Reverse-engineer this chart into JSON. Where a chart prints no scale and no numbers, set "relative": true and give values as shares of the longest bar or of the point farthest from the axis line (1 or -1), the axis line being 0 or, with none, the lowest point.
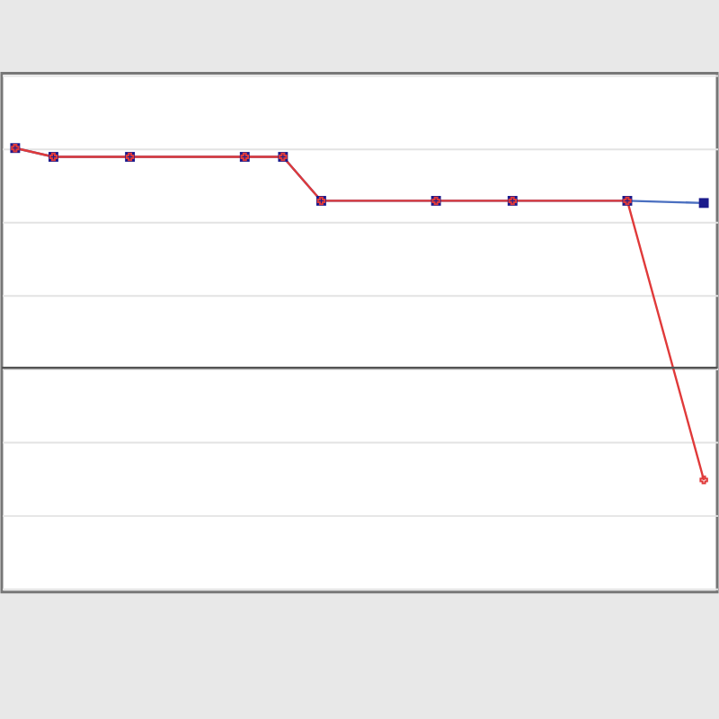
{
  "chart_data": {
    "type": "line",
    "relative": true,
    "grid": "y",
    "categories": [
      null,
      null,
      null,
      null,
      null,
      null,
      null,
      null,
      null,
      null,
      null,
      null,
      null,
      null,
      null,
      null,
      null,
      null,
      null
    ],
    "series": [
      {
        "color": "#4a6fc0",
        "marker": "square",
        "values": [
          1,
          0.96,
          null,
          0.96,
          null,
          null,
          0.96,
          0.96,
          0.76,
          null,
          null,
          0.76,
          null,
          0.76,
          null,
          null,
          0.76,
          null,
          0.75
        ]
      },
      {
        "color": "#e03a3a",
        "marker": "cross",
        "values": [
          1,
          0.96,
          null,
          0.96,
          null,
          null,
          0.96,
          0.96,
          0.76,
          null,
          null,
          0.76,
          null,
          0.76,
          null,
          null,
          0.76,
          null,
          -0.51
        ]
      }
    ]
  }
}
